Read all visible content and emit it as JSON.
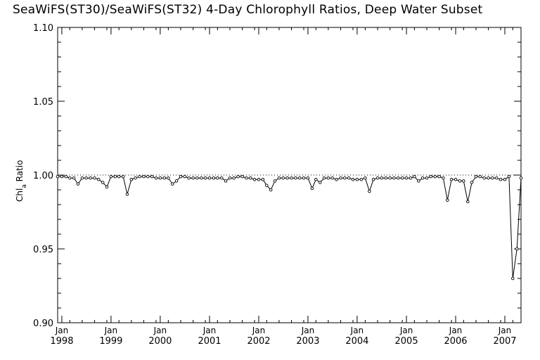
{
  "chart_data": {
    "type": "line",
    "title": "SeaWiFS(ST30)/SeaWiFS(ST32) 4-Day Chlorophyll Ratios, Deep Water Subset",
    "ylabel": "Chl_a Ratio",
    "ylabel_main": "Chl",
    "ylabel_sub": "a",
    "ylabel_tail": " Ratio",
    "xlabel": "",
    "ylim": [
      0.9,
      1.1
    ],
    "y_major_ticks": [
      0.9,
      0.95,
      1.0,
      1.05,
      1.1
    ],
    "y_tick_labels": [
      "0.90",
      "0.95",
      "1.00",
      "1.05",
      "1.10"
    ],
    "y_minor_step": 0.01,
    "xlim": [
      "1997-12-01",
      "2007-05-01"
    ],
    "x_ticks": [
      {
        "date": "1998-01-01",
        "month": "Jan",
        "year": "1998"
      },
      {
        "date": "1999-01-01",
        "month": "Jan",
        "year": "1999"
      },
      {
        "date": "2000-01-01",
        "month": "Jan",
        "year": "2000"
      },
      {
        "date": "2001-01-01",
        "month": "Jan",
        "year": "2001"
      },
      {
        "date": "2002-01-01",
        "month": "Jan",
        "year": "2002"
      },
      {
        "date": "2003-01-01",
        "month": "Jan",
        "year": "2003"
      },
      {
        "date": "2004-01-01",
        "month": "Jan",
        "year": "2004"
      },
      {
        "date": "2005-01-01",
        "month": "Jan",
        "year": "2005"
      },
      {
        "date": "2006-01-01",
        "month": "Jan",
        "year": "2006"
      },
      {
        "date": "2007-01-01",
        "month": "Jan",
        "year": "2007"
      }
    ],
    "reference_line": {
      "y": 1.0,
      "style": "dotted"
    },
    "grid": false,
    "series": [
      {
        "x": [
          "1997-12-01",
          "1998-01-01",
          "1998-02-01",
          "1998-03-01",
          "1998-04-01",
          "1998-05-01",
          "1998-06-01",
          "1998-07-01",
          "1998-08-01",
          "1998-09-01",
          "1998-10-01",
          "1998-11-01",
          "1998-12-01",
          "1999-01-01",
          "1999-02-01",
          "1999-03-01",
          "1999-04-01",
          "1999-05-01",
          "1999-06-01",
          "1999-07-01",
          "1999-08-01",
          "1999-09-01",
          "1999-10-01",
          "1999-11-01",
          "1999-12-01",
          "2000-01-01",
          "2000-02-01",
          "2000-03-01",
          "2000-04-01",
          "2000-05-01",
          "2000-06-01",
          "2000-07-01",
          "2000-08-01",
          "2000-09-01",
          "2000-10-01",
          "2000-11-01",
          "2000-12-01",
          "2001-01-01",
          "2001-02-01",
          "2001-03-01",
          "2001-04-01",
          "2001-05-01",
          "2001-06-01",
          "2001-07-01",
          "2001-08-01",
          "2001-09-01",
          "2001-10-01",
          "2001-11-01",
          "2001-12-01",
          "2002-01-01",
          "2002-02-01",
          "2002-03-01",
          "2002-04-01",
          "2002-05-01",
          "2002-06-01",
          "2002-07-01",
          "2002-08-01",
          "2002-09-01",
          "2002-10-01",
          "2002-11-01",
          "2002-12-01",
          "2003-01-01",
          "2003-02-01",
          "2003-03-01",
          "2003-04-01",
          "2003-05-01",
          "2003-06-01",
          "2003-07-01",
          "2003-08-01",
          "2003-09-01",
          "2003-10-01",
          "2003-11-01",
          "2003-12-01",
          "2004-01-01",
          "2004-02-01",
          "2004-03-01",
          "2004-04-01",
          "2004-05-01",
          "2004-06-01",
          "2004-07-01",
          "2004-08-01",
          "2004-09-01",
          "2004-10-01",
          "2004-11-01",
          "2004-12-01",
          "2005-01-01",
          "2005-02-01",
          "2005-03-01",
          "2005-04-01",
          "2005-05-01",
          "2005-06-01",
          "2005-07-01",
          "2005-08-01",
          "2005-09-01",
          "2005-10-01",
          "2005-11-01",
          "2005-12-01",
          "2006-01-01",
          "2006-02-01",
          "2006-03-01",
          "2006-04-01",
          "2006-05-01",
          "2006-06-01",
          "2006-07-01",
          "2006-08-01",
          "2006-09-01",
          "2006-10-01",
          "2006-11-01",
          "2006-12-01",
          "2007-01-01",
          "2007-02-01",
          "2007-03-01",
          "2007-04-01",
          "2007-05-01"
        ],
        "values": [
          0.999,
          0.999,
          0.999,
          0.998,
          0.998,
          0.994,
          0.998,
          0.998,
          0.998,
          0.998,
          0.997,
          0.995,
          0.992,
          0.999,
          0.999,
          0.999,
          0.999,
          0.987,
          0.997,
          0.998,
          0.999,
          0.999,
          0.999,
          0.999,
          0.998,
          0.998,
          0.998,
          0.998,
          0.994,
          0.996,
          0.999,
          0.999,
          0.998,
          0.998,
          0.998,
          0.998,
          0.998,
          0.998,
          0.998,
          0.998,
          0.998,
          0.996,
          0.998,
          0.998,
          0.999,
          0.999,
          0.998,
          0.998,
          0.997,
          0.997,
          0.997,
          0.993,
          0.99,
          0.996,
          0.998,
          0.998,
          0.998,
          0.998,
          0.998,
          0.998,
          0.998,
          0.998,
          0.991,
          0.997,
          0.995,
          0.998,
          0.998,
          0.998,
          0.997,
          0.998,
          0.998,
          0.998,
          0.997,
          0.997,
          0.997,
          0.998,
          0.989,
          0.997,
          0.998,
          0.998,
          0.998,
          0.998,
          0.998,
          0.998,
          0.998,
          0.998,
          0.998,
          0.999,
          0.996,
          0.998,
          0.998,
          0.999,
          0.999,
          0.999,
          0.998,
          0.983,
          0.997,
          0.997,
          0.996,
          0.996,
          0.982,
          0.995,
          0.999,
          0.999,
          0.998,
          0.998,
          0.998,
          0.998,
          0.997,
          0.997,
          0.999,
          0.93,
          0.95,
          0.998
        ]
      }
    ]
  }
}
